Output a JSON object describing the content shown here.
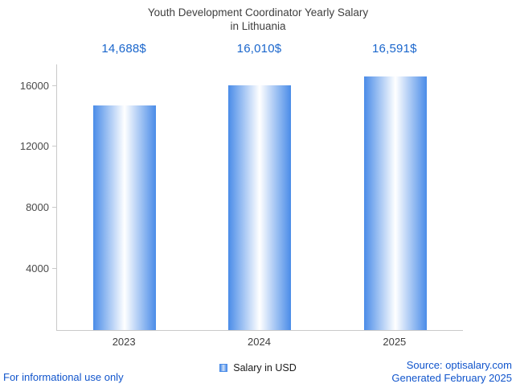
{
  "title": {
    "line1": "Youth Development Coordinator Yearly Salary",
    "line2": "in Lithuania"
  },
  "chart_data": {
    "type": "bar",
    "title": "Youth Development Coordinator Yearly Salary in Lithuania",
    "categories": [
      "2023",
      "2024",
      "2025"
    ],
    "values": [
      14688,
      16010,
      16591
    ],
    "value_labels": [
      "14,688$",
      "16,010$",
      "16,591$"
    ],
    "series_name": "Salary in USD",
    "xlabel": "",
    "ylabel": "",
    "yticks": [
      4000,
      8000,
      12000,
      16000
    ],
    "ylim": [
      0,
      17400
    ],
    "grid": false,
    "legend_position": "bottom",
    "bar_color": "#4a8ce8",
    "bar_gradient_center": "#ffffff"
  },
  "legend": {
    "label": "Salary in USD",
    "swatch_color": "#4a8ce8"
  },
  "footer": {
    "disclaimer": "For informational use only",
    "source": "Source: optisalary.com",
    "generated": "Generated February 2025"
  },
  "colors": {
    "accent_blue": "#1a66cc",
    "link_blue": "#1155cc",
    "axis": "#c9c9c9",
    "title_text": "#3f3f3f"
  }
}
